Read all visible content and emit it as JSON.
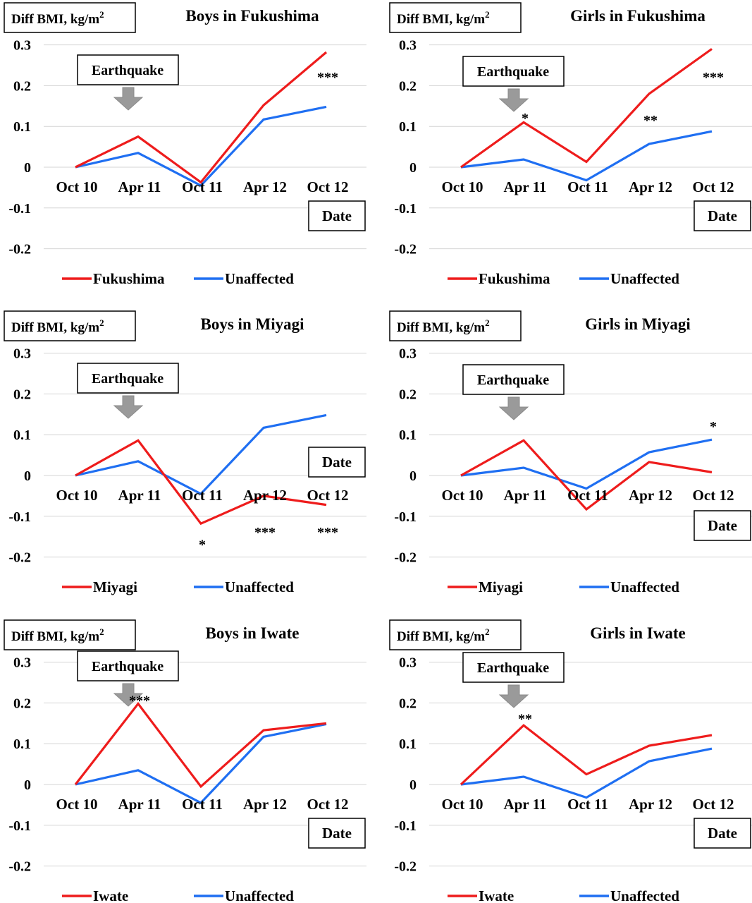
{
  "chart_data": [
    {
      "type": "line",
      "title": "Boys in Fukushima",
      "ylabel": "Diff BMI, kg/m",
      "ylabel_sup": "2",
      "xlabel": "Date",
      "categories": [
        "Oct 10",
        "Apr 11",
        "Oct 11",
        "Apr 12",
        "Oct 12"
      ],
      "ylim": [
        -0.2,
        0.3
      ],
      "yticks": [
        "0.3",
        "0.2",
        "0.1",
        "0",
        "-0.1",
        "-0.2"
      ],
      "grid": true,
      "legend_position": "bottom",
      "annotation": "Earthquake",
      "series": [
        {
          "name": "Fukushima",
          "color": "#ee1c1c",
          "values": [
            0,
            0.075,
            -0.037,
            0.152,
            0.282
          ]
        },
        {
          "name": "Unaffected",
          "color": "#1f6ff2",
          "values": [
            0,
            0.035,
            -0.045,
            0.117,
            0.148
          ]
        }
      ],
      "significance": [
        {
          "category": "Oct 12",
          "label": "***",
          "y": 0.23
        }
      ]
    },
    {
      "type": "line",
      "title": "Girls in Fukushima",
      "ylabel": "Diff BMI, kg/m",
      "ylabel_sup": "2",
      "xlabel": "Date",
      "categories": [
        "Oct 10",
        "Apr 11",
        "Oct 11",
        "Apr 12",
        "Oct 12"
      ],
      "ylim": [
        -0.2,
        0.3
      ],
      "yticks": [
        "0.3",
        "0.2",
        "0.1",
        "0",
        "-0.1",
        "-0.2"
      ],
      "grid": true,
      "legend_position": "bottom",
      "annotation": "Earthquake",
      "series": [
        {
          "name": "Fukushima",
          "color": "#ee1c1c",
          "values": [
            0,
            0.11,
            0.013,
            0.18,
            0.29
          ]
        },
        {
          "name": "Unaffected",
          "color": "#1f6ff2",
          "values": [
            0,
            0.019,
            -0.032,
            0.057,
            0.088
          ]
        }
      ],
      "significance": [
        {
          "category": "Apr 11",
          "label": "*",
          "y": 0.13
        },
        {
          "category": "Apr 12",
          "label": "**",
          "y": 0.125
        },
        {
          "category": "Oct 12",
          "label": "***",
          "y": 0.23
        }
      ]
    },
    {
      "type": "line",
      "title": "Boys in Miyagi",
      "ylabel": "Diff BMI, kg/m",
      "ylabel_sup": "2",
      "xlabel": "Date",
      "categories": [
        "Oct 10",
        "Apr 11",
        "Oct 11",
        "Apr 12",
        "Oct 12"
      ],
      "ylim": [
        -0.2,
        0.3
      ],
      "yticks": [
        "0.3",
        "0.2",
        "0.1",
        "0",
        "-0.1",
        "-0.2"
      ],
      "grid": true,
      "legend_position": "bottom",
      "annotation": "Earthquake",
      "series": [
        {
          "name": "Miyagi",
          "color": "#ee1c1c",
          "values": [
            0,
            0.086,
            -0.118,
            -0.05,
            -0.072
          ]
        },
        {
          "name": "Unaffected",
          "color": "#1f6ff2",
          "values": [
            0,
            0.035,
            -0.045,
            0.117,
            0.148
          ]
        }
      ],
      "significance": [
        {
          "category": "Oct 11",
          "label": "*",
          "y": -0.16
        },
        {
          "category": "Apr 12",
          "label": "***",
          "y": -0.13
        },
        {
          "category": "Oct 12",
          "label": "***",
          "y": -0.13
        }
      ]
    },
    {
      "type": "line",
      "title": "Girls in Miyagi",
      "ylabel": "Diff BMI, kg/m",
      "ylabel_sup": "2",
      "xlabel": "Date",
      "categories": [
        "Oct 10",
        "Apr 11",
        "Oct 11",
        "Apr 12",
        "Oct 12"
      ],
      "ylim": [
        -0.2,
        0.3
      ],
      "yticks": [
        "0.3",
        "0.2",
        "0.1",
        "0",
        "-0.1",
        "-0.2"
      ],
      "grid": true,
      "legend_position": "bottom",
      "annotation": "Earthquake",
      "series": [
        {
          "name": "Miyagi",
          "color": "#ee1c1c",
          "values": [
            0,
            0.086,
            -0.083,
            0.033,
            0.008
          ]
        },
        {
          "name": "Unaffected",
          "color": "#1f6ff2",
          "values": [
            0,
            0.019,
            -0.032,
            0.057,
            0.088
          ]
        }
      ],
      "significance": [
        {
          "category": "Oct 12",
          "label": "*",
          "y": 0.13
        }
      ]
    },
    {
      "type": "line",
      "title": "Boys in Iwate",
      "ylabel": "Diff BMI, kg/m",
      "ylabel_sup": "2",
      "xlabel": "Date",
      "categories": [
        "Oct 10",
        "Apr 11",
        "Oct 11",
        "Apr 12",
        "Oct 12"
      ],
      "ylim": [
        -0.2,
        0.3
      ],
      "yticks": [
        "0.3",
        "0.2",
        "0.1",
        "0",
        "-0.1",
        "-0.2"
      ],
      "grid": true,
      "legend_position": "bottom",
      "annotation": "Earthquake",
      "series": [
        {
          "name": "Iwate",
          "color": "#ee1c1c",
          "values": [
            0,
            0.198,
            -0.005,
            0.133,
            0.15
          ]
        },
        {
          "name": "Unaffected",
          "color": "#1f6ff2",
          "values": [
            0,
            0.035,
            -0.045,
            0.117,
            0.148
          ]
        }
      ],
      "significance": [
        {
          "category": "Apr 11",
          "label": "***",
          "y": 0.215
        }
      ]
    },
    {
      "type": "line",
      "title": "Girls in Iwate",
      "ylabel": "Diff BMI, kg/m",
      "ylabel_sup": "2",
      "xlabel": "Date",
      "categories": [
        "Oct 10",
        "Apr 11",
        "Oct 11",
        "Apr 12",
        "Oct 12"
      ],
      "ylim": [
        -0.2,
        0.3
      ],
      "yticks": [
        "0.3",
        "0.2",
        "0.1",
        "0",
        "-0.1",
        "-0.2"
      ],
      "grid": true,
      "legend_position": "bottom",
      "annotation": "Earthquake",
      "series": [
        {
          "name": "Iwate",
          "color": "#ee1c1c",
          "values": [
            0,
            0.145,
            0.025,
            0.095,
            0.121
          ]
        },
        {
          "name": "Unaffected",
          "color": "#1f6ff2",
          "values": [
            0,
            0.019,
            -0.032,
            0.057,
            0.088
          ]
        }
      ],
      "significance": [
        {
          "category": "Apr 11",
          "label": "**",
          "y": 0.17
        }
      ]
    }
  ]
}
